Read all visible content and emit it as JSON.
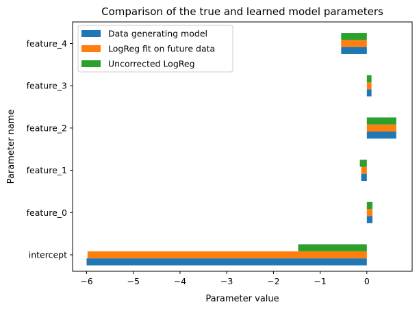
{
  "chart_data": {
    "type": "bar",
    "orientation": "horizontal",
    "title": "Comparison of the true and learned model parameters",
    "xlabel": "Parameter value",
    "ylabel": "Parameter name",
    "categories": [
      "intercept",
      "feature_0",
      "feature_1",
      "feature_2",
      "feature_3",
      "feature_4"
    ],
    "series": [
      {
        "name": "Data generating model",
        "color": "#1f77b4",
        "values": [
          -6.0,
          0.12,
          -0.12,
          0.63,
          0.1,
          -0.55
        ]
      },
      {
        "name": "LogReg fit on future data",
        "color": "#ff7f0e",
        "values": [
          -5.98,
          0.12,
          -0.12,
          0.63,
          0.1,
          -0.55
        ]
      },
      {
        "name": "Uncorrected LogReg",
        "color": "#2ca02c",
        "values": [
          -1.47,
          0.12,
          -0.15,
          0.63,
          0.1,
          -0.55
        ]
      }
    ],
    "xlim": [
      -6.3,
      0.97
    ],
    "xticks": [
      -6,
      -5,
      -4,
      -3,
      -2,
      -1,
      0
    ],
    "xtick_labels": [
      "−6",
      "−5",
      "−4",
      "−3",
      "−2",
      "−1",
      "0"
    ],
    "grid": false,
    "legend_position": "top-left"
  }
}
